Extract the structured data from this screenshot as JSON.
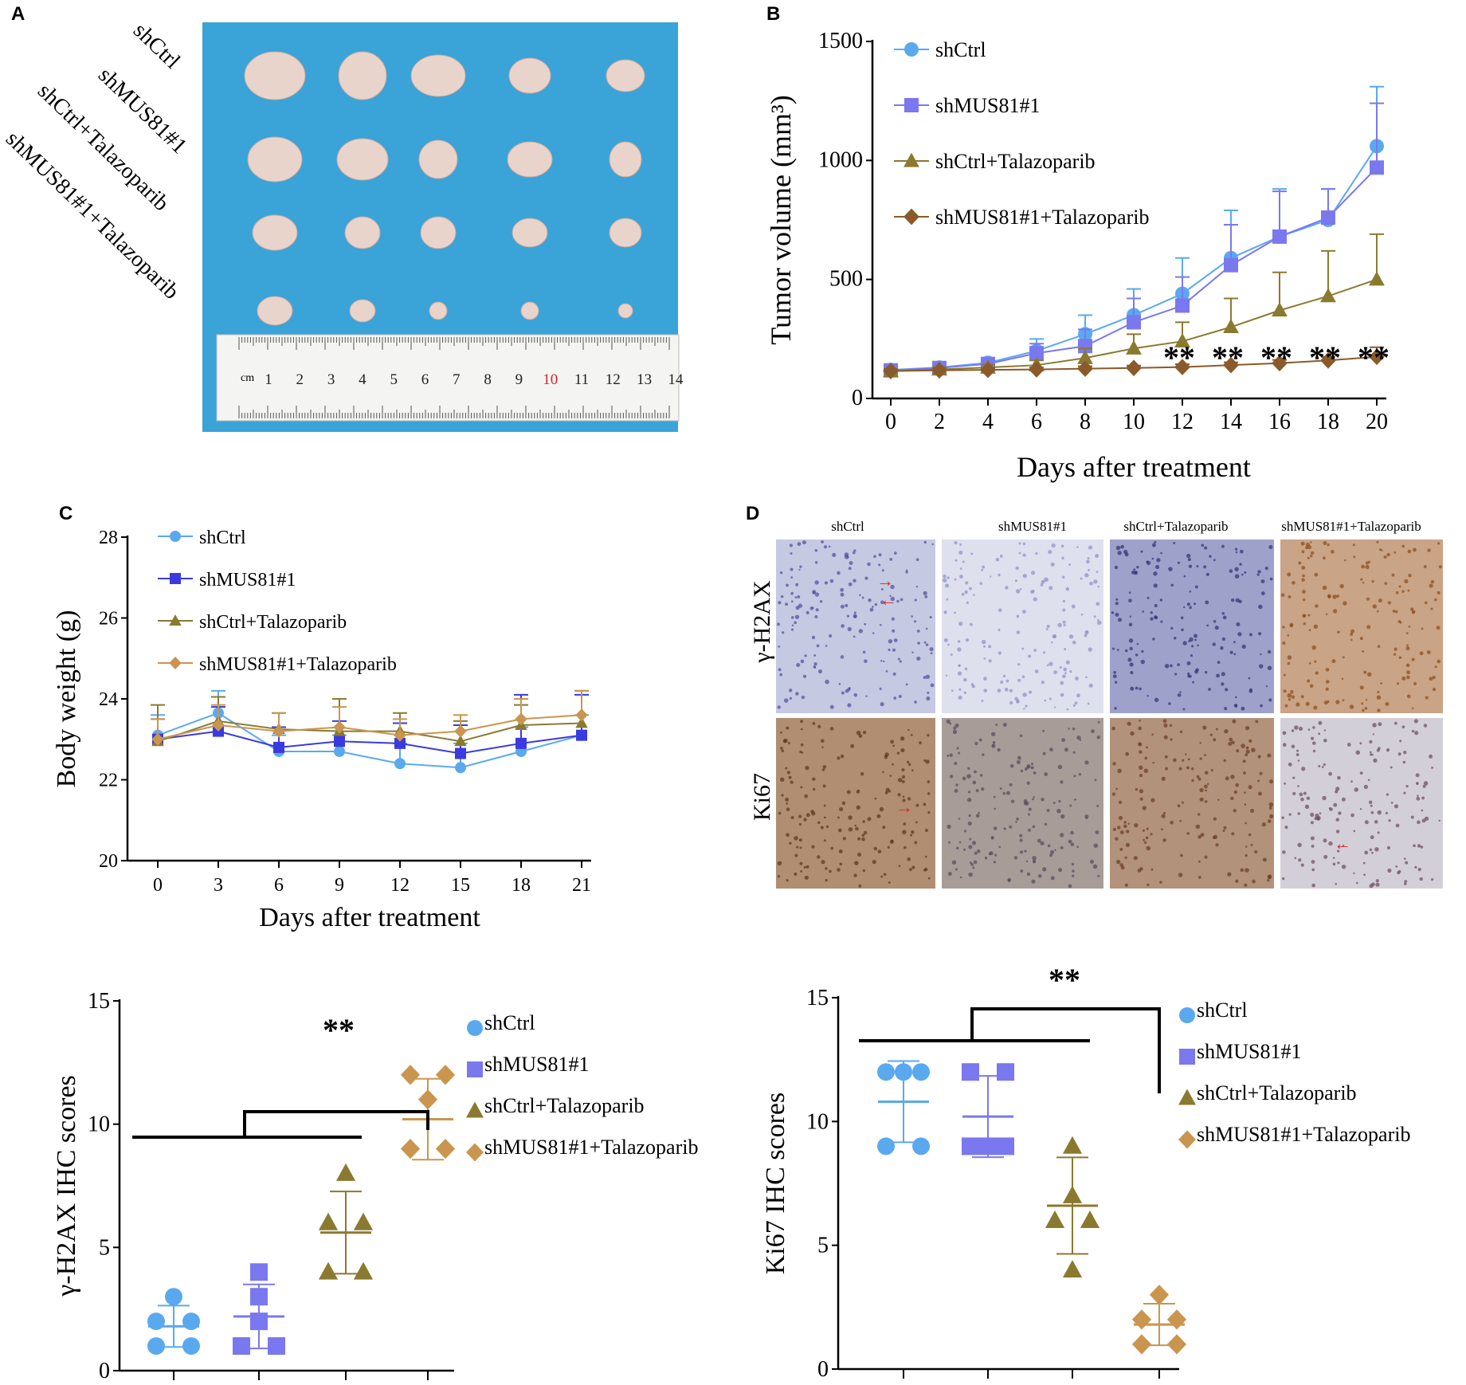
{
  "panel_labels": {
    "A": "A",
    "B": "B",
    "C": "C",
    "D": "D"
  },
  "colors": {
    "shCtrl": "#5aa9ef",
    "shMUS81": "#7a78ee",
    "shMUS81_C": "#3a3ae0",
    "talaz": "#8a7a30",
    "combo": "#8b5a2b",
    "combo_light": "#c9954f",
    "photo_bg": "#3aa3d8",
    "tumor": "#e9d4cc"
  },
  "panelA": {
    "row_labels": [
      "shCtrl",
      "shMUS81#1",
      "shCtrl+Talazoparib",
      "shMUS81#1+Talazoparib"
    ],
    "ruler": {
      "unit": "cm",
      "numbers": [
        "1",
        "2",
        "3",
        "4",
        "5",
        "6",
        "7",
        "8",
        "9",
        "10",
        "11",
        "12",
        "13",
        "14"
      ]
    }
  },
  "panelD": {
    "col_labels": [
      "shCtrl",
      "shMUS81#1",
      "shCtrl+Talazoparib",
      "shMUS81#1+Talazoparib"
    ],
    "row_labels": [
      "γ-H2AX",
      "Ki67"
    ],
    "arrow_glyph_right": "→",
    "arrow_glyph_left": "←"
  },
  "chart_data": [
    {
      "id": "B",
      "type": "line",
      "xlabel": "Days after treatment",
      "ylabel": "Tumor volume (mm³)",
      "x": [
        0,
        2,
        4,
        6,
        8,
        10,
        12,
        14,
        16,
        18,
        20
      ],
      "xlim": [
        0,
        20
      ],
      "ylim": [
        0,
        1500
      ],
      "yticks": [
        0,
        500,
        1000,
        1500
      ],
      "series": [
        {
          "name": "shCtrl",
          "marker": "circle",
          "values": [
            120,
            130,
            150,
            200,
            270,
            350,
            440,
            590,
            680,
            750,
            1060
          ],
          "errors": [
            15,
            15,
            20,
            50,
            80,
            110,
            150,
            200,
            200,
            130,
            250
          ]
        },
        {
          "name": "shMUS81#1",
          "marker": "square",
          "values": [
            118,
            128,
            145,
            190,
            220,
            320,
            390,
            560,
            680,
            760,
            970
          ],
          "errors": [
            12,
            12,
            15,
            40,
            70,
            100,
            120,
            170,
            190,
            120,
            270
          ]
        },
        {
          "name": "shCtrl+Talazoparib",
          "marker": "triangle",
          "values": [
            115,
            122,
            130,
            140,
            170,
            210,
            240,
            300,
            370,
            430,
            500
          ],
          "errors": [
            10,
            10,
            12,
            20,
            40,
            60,
            80,
            120,
            160,
            190,
            190
          ]
        },
        {
          "name": "shMUS81#1+Talazoparib",
          "marker": "diamond",
          "values": [
            115,
            118,
            120,
            122,
            125,
            128,
            132,
            140,
            148,
            160,
            175
          ],
          "errors": [
            8,
            8,
            8,
            8,
            10,
            10,
            12,
            12,
            14,
            15,
            40
          ]
        }
      ],
      "annotations": [
        "**",
        "**",
        "**",
        "**",
        "**"
      ],
      "annotation_x": [
        12,
        14,
        16,
        18,
        20
      ]
    },
    {
      "id": "C",
      "type": "line",
      "xlabel": "Days after treatment",
      "ylabel": "Body weight (g)",
      "x": [
        0,
        3,
        6,
        9,
        12,
        15,
        18,
        21
      ],
      "xlim": [
        0,
        21
      ],
      "ylim": [
        20,
        28
      ],
      "yticks": [
        20,
        22,
        24,
        26,
        28
      ],
      "series": [
        {
          "name": "shCtrl",
          "marker": "circle",
          "values": [
            23.1,
            23.65,
            22.7,
            22.7,
            22.4,
            22.3,
            22.7,
            23.1
          ],
          "errors": [
            0.5,
            0.55,
            0.4,
            0.4,
            0.5,
            0.6,
            0.6,
            0.5
          ]
        },
        {
          "name": "shMUS81#1",
          "marker": "square",
          "values": [
            23.0,
            23.2,
            22.8,
            22.95,
            22.9,
            22.65,
            22.9,
            23.1
          ],
          "errors": [
            0.5,
            0.6,
            0.5,
            0.5,
            0.5,
            0.7,
            1.2,
            1.0
          ]
        },
        {
          "name": "shCtrl+Talazoparib",
          "marker": "triangle",
          "values": [
            22.95,
            23.45,
            23.25,
            23.2,
            23.2,
            22.95,
            23.35,
            23.4
          ],
          "errors": [
            0.9,
            0.6,
            0.4,
            0.8,
            0.45,
            0.5,
            0.5,
            0.8
          ]
        },
        {
          "name": "shMUS81#1+Talazoparib",
          "marker": "diamond",
          "values": [
            23.0,
            23.35,
            23.2,
            23.3,
            23.1,
            23.2,
            23.5,
            23.6
          ],
          "errors": [
            0.5,
            0.5,
            0.45,
            0.5,
            0.4,
            0.4,
            0.5,
            0.6
          ]
        }
      ]
    },
    {
      "id": "E",
      "type": "scatter",
      "ylabel": "γ-H2AX IHC scores",
      "ylim": [
        0,
        15
      ],
      "yticks": [
        0,
        5,
        10,
        15
      ],
      "series": [
        {
          "name": "shCtrl",
          "marker": "circle",
          "points": [
            3,
            2,
            2,
            1,
            1
          ],
          "mean": 1.8,
          "sd": 0.84
        },
        {
          "name": "shMUS81#1",
          "marker": "square",
          "points": [
            4,
            3,
            2,
            1,
            1
          ],
          "mean": 2.2,
          "sd": 1.3
        },
        {
          "name": "shCtrl+Talazoparib",
          "marker": "triangle",
          "points": [
            8,
            6,
            6,
            4,
            4
          ],
          "mean": 5.6,
          "sd": 1.67
        },
        {
          "name": "shMUS81#1+Talazoparib",
          "marker": "diamond",
          "points": [
            12,
            12,
            11,
            9,
            9
          ],
          "mean": 10.2,
          "sd": 1.64
        }
      ],
      "significance": "**"
    },
    {
      "id": "F",
      "type": "scatter",
      "ylabel": "Ki67 IHC scores",
      "ylim": [
        0,
        15
      ],
      "yticks": [
        0,
        5,
        10,
        15
      ],
      "series": [
        {
          "name": "shCtrl",
          "marker": "circle",
          "points": [
            12,
            12,
            12,
            9,
            9
          ],
          "mean": 10.8,
          "sd": 1.64
        },
        {
          "name": "shMUS81#1",
          "marker": "square",
          "points": [
            12,
            12,
            9,
            9,
            9
          ],
          "mean": 10.2,
          "sd": 1.64
        },
        {
          "name": "shCtrl+Talazoparib",
          "marker": "triangle",
          "points": [
            9,
            7,
            6,
            6,
            4
          ],
          "mean": 6.6,
          "sd": 1.95
        },
        {
          "name": "shMUS81#1+Talazoparib",
          "marker": "diamond",
          "points": [
            3,
            2,
            2,
            1,
            1
          ],
          "mean": 1.8,
          "sd": 0.84
        }
      ],
      "significance": "**"
    }
  ]
}
